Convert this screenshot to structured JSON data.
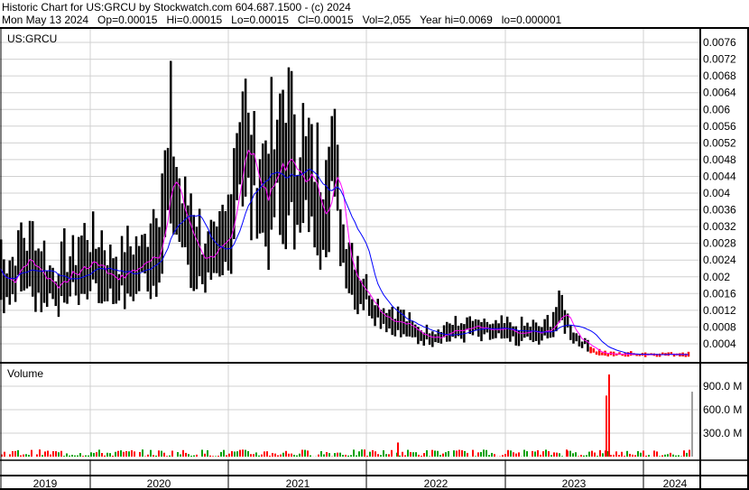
{
  "header": {
    "line1": "Historic Chart for US:GRCU by Stockwatch.com 604.687.1500 - (c) 2024",
    "line2": "Mon May 13 2024   Op=0.00015   Hi=0.00015   Lo=0.00015   Cl=0.00015   Vol=2,055   Year hi=0.0069   lo=0.000001"
  },
  "chart_data": [
    {
      "type": "line",
      "title": "US:GRCU",
      "ylim": [
        0,
        0.0078
      ],
      "yticks": [
        "0.0004",
        "0.0008",
        "0.0012",
        "0.0016",
        "0.002",
        "0.0024",
        "0.0028",
        "0.0032",
        "0.0036",
        "0.004",
        "0.0044",
        "0.0048",
        "0.0052",
        "0.0056",
        "0.006",
        "0.0064",
        "0.0068",
        "0.0072",
        "0.0076"
      ],
      "x_start": "2019-05",
      "x_end": "2024-05",
      "monthly_close": [
        0.0022,
        0.0019,
        0.0024,
        0.0023,
        0.002,
        0.0018,
        0.002,
        0.0022,
        0.0024,
        0.0022,
        0.002,
        0.0021,
        0.0022,
        0.0025,
        0.003,
        0.0045,
        0.0033,
        0.0028,
        0.0024,
        0.0023,
        0.003,
        0.0055,
        0.0045,
        0.004,
        0.0043,
        0.0048,
        0.0046,
        0.0042,
        0.0035,
        0.005,
        0.0028,
        0.002,
        0.0016,
        0.0012,
        0.001,
        0.0009,
        0.0007,
        0.0006,
        0.0006,
        0.0007,
        0.0007,
        0.0008,
        0.0007,
        0.0007,
        0.0007,
        0.0006,
        0.0007,
        0.0006,
        0.0008,
        0.0012,
        0.0006,
        0.0004,
        0.0002,
        0.00015,
        0.00015,
        0.00015,
        0.00015,
        0.00015,
        0.00015,
        0.00015,
        0.00015
      ],
      "series_colors": {
        "price": "#000000",
        "ma_short": "#ff00ff",
        "ma_long": "#0000ff",
        "down": "#ff0000"
      }
    },
    {
      "type": "bar",
      "title": "Volume",
      "yticks": [
        "300.0 M",
        "600.0 M",
        "900.0 M"
      ],
      "ylim": [
        0,
        1100
      ],
      "unit": "M",
      "spikes": [
        {
          "month": "2022-01",
          "value": 180
        },
        {
          "month": "2023-06",
          "value": 90
        },
        {
          "month": "2023-09",
          "value": 780
        },
        {
          "month": "2023-09",
          "value": 1050
        },
        {
          "month": "2024-05",
          "value": 830
        }
      ],
      "colors": {
        "up": "#00a000",
        "down": "#ff0000",
        "neutral": "#a0a0a0"
      }
    }
  ],
  "xaxis": {
    "years": [
      "2019",
      "2020",
      "2021",
      "2022",
      "2023",
      "2024"
    ]
  }
}
